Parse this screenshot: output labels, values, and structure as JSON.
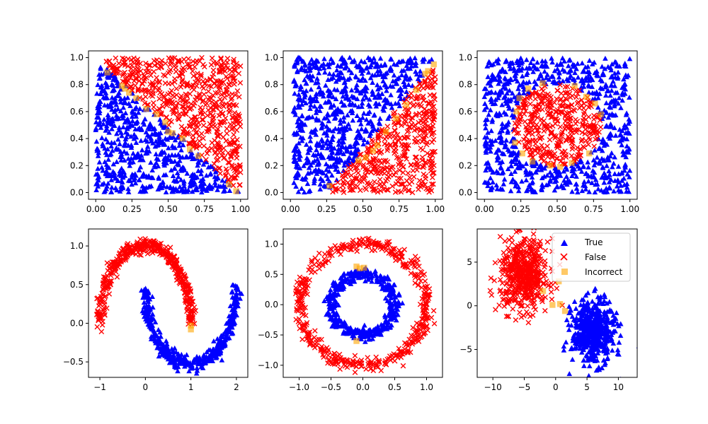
{
  "colors": {
    "true": "#0000ff",
    "false": "#ff0000",
    "incorrect": "#ffa500"
  },
  "legend": {
    "entries": [
      {
        "label": "True",
        "marker": "triangle",
        "color": "#0000ff"
      },
      {
        "label": "False",
        "marker": "x",
        "color": "#ff0000"
      },
      {
        "label": "Incorrect",
        "marker": "square",
        "color": "#ffa500"
      }
    ]
  },
  "chart_data": [
    {
      "type": "scatter",
      "title": "",
      "description": "Uniform points in unit square split by anti-diagonal: True below x+y=1, False above",
      "xlim": [
        -0.05,
        1.05
      ],
      "ylim": [
        -0.05,
        1.05
      ],
      "xticks": [
        0.0,
        0.25,
        0.5,
        0.75,
        1.0
      ],
      "yticks": [
        0.0,
        0.2,
        0.4,
        0.6,
        0.8,
        1.0
      ],
      "xtick_labels": [
        "0.00",
        "0.25",
        "0.50",
        "0.75",
        "1.00"
      ],
      "ytick_labels": [
        "0.0",
        "0.2",
        "0.4",
        "0.6",
        "0.8",
        "1.0"
      ],
      "series": [
        {
          "name": "True",
          "marker": "triangle",
          "rule": "x+y<1",
          "n_points": 600
        },
        {
          "name": "False",
          "marker": "x",
          "rule": "x+y>=1",
          "n_points": 600
        },
        {
          "name": "Incorrect",
          "marker": "square",
          "points": [
            [
              0.08,
              0.89
            ],
            [
              0.18,
              0.79
            ],
            [
              0.2,
              0.77
            ],
            [
              0.23,
              0.74
            ],
            [
              0.28,
              0.7
            ],
            [
              0.35,
              0.62
            ],
            [
              0.42,
              0.58
            ],
            [
              0.48,
              0.52
            ],
            [
              0.5,
              0.45
            ],
            [
              0.53,
              0.44
            ],
            [
              0.6,
              0.4
            ],
            [
              0.65,
              0.32
            ],
            [
              0.71,
              0.27
            ],
            [
              0.92,
              0.06
            ],
            [
              0.97,
              0.01
            ]
          ]
        }
      ]
    },
    {
      "type": "scatter",
      "title": "",
      "description": "Uniform points; True above line y=(x-0.25)*1.27, False below",
      "xlim": [
        -0.05,
        1.05
      ],
      "ylim": [
        -0.05,
        1.05
      ],
      "xticks": [
        0.0,
        0.25,
        0.5,
        0.75,
        1.0
      ],
      "yticks": [
        0.0,
        0.2,
        0.4,
        0.6,
        0.8,
        1.0
      ],
      "xtick_labels": [
        "0.00",
        "0.25",
        "0.50",
        "0.75",
        "1.00"
      ],
      "ytick_labels": [
        "0.0",
        "0.2",
        "0.4",
        "0.6",
        "0.8",
        "1.0"
      ],
      "series": [
        {
          "name": "True",
          "marker": "triangle",
          "rule": "y>(x-0.25)*1.27",
          "n_points": 700
        },
        {
          "name": "False",
          "marker": "x",
          "rule": "y<=(x-0.25)*1.27",
          "n_points": 450
        },
        {
          "name": "Incorrect",
          "marker": "square",
          "points": [
            [
              0.27,
              0.05
            ],
            [
              0.47,
              0.24
            ],
            [
              0.52,
              0.26
            ],
            [
              0.57,
              0.31
            ],
            [
              0.6,
              0.35
            ],
            [
              0.66,
              0.45
            ],
            [
              0.73,
              0.55
            ],
            [
              0.8,
              0.65
            ],
            [
              0.87,
              0.76
            ],
            [
              0.93,
              0.88
            ],
            [
              0.95,
              0.9
            ],
            [
              0.99,
              0.95
            ]
          ]
        }
      ]
    },
    {
      "type": "scatter",
      "title": "",
      "description": "Uniform points; False inside circle centered (0.5,0.5) r=0.3, True outside",
      "xlim": [
        -0.05,
        1.05
      ],
      "ylim": [
        -0.05,
        1.05
      ],
      "xticks": [
        0.0,
        0.25,
        0.5,
        0.75,
        1.0
      ],
      "yticks": [
        0.0,
        0.2,
        0.4,
        0.6,
        0.8,
        1.0
      ],
      "xtick_labels": [
        "0.00",
        "0.25",
        "0.50",
        "0.75",
        "1.00"
      ],
      "ytick_labels": [
        "0.0",
        "0.2",
        "0.4",
        "0.6",
        "0.8",
        "1.0"
      ],
      "series": [
        {
          "name": "True",
          "marker": "triangle",
          "rule": "dist>=0.3",
          "n_points": 750
        },
        {
          "name": "False",
          "marker": "x",
          "rule": "dist<0.3",
          "n_points": 380
        },
        {
          "name": "Incorrect",
          "marker": "square",
          "points": [
            [
              0.22,
              0.6
            ],
            [
              0.24,
              0.7
            ],
            [
              0.3,
              0.77
            ],
            [
              0.4,
              0.81
            ],
            [
              0.62,
              0.79
            ],
            [
              0.7,
              0.71
            ],
            [
              0.76,
              0.66
            ],
            [
              0.8,
              0.58
            ],
            [
              0.21,
              0.37
            ],
            [
              0.26,
              0.29
            ],
            [
              0.33,
              0.23
            ],
            [
              0.45,
              0.2
            ],
            [
              0.52,
              0.19
            ],
            [
              0.6,
              0.22
            ],
            [
              0.72,
              0.29
            ]
          ]
        }
      ]
    },
    {
      "type": "scatter",
      "title": "",
      "description": "Two interleaving moons: False upper arc, True lower arc",
      "xlim": [
        -1.25,
        2.25
      ],
      "ylim": [
        -0.7,
        1.22
      ],
      "xticks": [
        -1,
        0,
        1,
        2
      ],
      "yticks": [
        -0.5,
        0.0,
        0.5,
        1.0
      ],
      "xtick_labels": [
        "−1",
        "0",
        "1",
        "2"
      ],
      "ytick_labels": [
        "−0.5",
        "0.0",
        "0.5",
        "1.0"
      ],
      "series": [
        {
          "name": "False",
          "marker": "x",
          "shape": "upper moon",
          "n_points": 420
        },
        {
          "name": "True",
          "marker": "triangle",
          "shape": "lower moon",
          "n_points": 420
        },
        {
          "name": "Incorrect",
          "marker": "square",
          "points": [
            [
              1.0,
              -0.03
            ],
            [
              1.0,
              -0.08
            ]
          ]
        }
      ]
    },
    {
      "type": "scatter",
      "title": "",
      "description": "Concentric circles: False outer ring r=1, True inner ring r=0.5",
      "xlim": [
        -1.25,
        1.25
      ],
      "ylim": [
        -1.2,
        1.25
      ],
      "xticks": [
        -1.0,
        -0.5,
        0.0,
        0.5,
        1.0
      ],
      "yticks": [
        -1.0,
        -0.5,
        0.0,
        0.5,
        1.0
      ],
      "xtick_labels": [
        "−1.0",
        "−0.5",
        "0.0",
        "0.5",
        "1.0"
      ],
      "ytick_labels": [
        "−1.0",
        "−0.5",
        "0.0",
        "0.5",
        "1.0"
      ],
      "series": [
        {
          "name": "False",
          "marker": "x",
          "shape": "outer ring r=1.0",
          "n_points": 480
        },
        {
          "name": "True",
          "marker": "triangle",
          "shape": "inner ring r=0.5",
          "n_points": 380
        },
        {
          "name": "Incorrect",
          "marker": "square",
          "points": [
            [
              -0.1,
              0.63
            ],
            [
              -0.05,
              0.6
            ],
            [
              0.02,
              0.61
            ],
            [
              -0.1,
              -0.6
            ]
          ]
        }
      ]
    },
    {
      "type": "scatter",
      "title": "",
      "description": "Two Gaussian blobs: False centered (-5,3.5), True centered (6,-3)",
      "xlim": [
        -12.5,
        13.0
      ],
      "ylim": [
        -8.2,
        8.8
      ],
      "xticks": [
        -10,
        -5,
        0,
        5,
        10
      ],
      "yticks": [
        -5,
        0,
        5
      ],
      "xtick_labels": [
        "−10",
        "−5",
        "0",
        "5",
        "10"
      ],
      "ytick_labels": [
        "−5",
        "0",
        "5"
      ],
      "series": [
        {
          "name": "False",
          "marker": "x",
          "center": [
            -5,
            3.5
          ],
          "n_points": 520
        },
        {
          "name": "True",
          "marker": "triangle",
          "center": [
            6,
            -3
          ],
          "n_points": 500
        },
        {
          "name": "Incorrect",
          "marker": "square",
          "points": [
            [
              -2,
              1.7
            ],
            [
              0.5,
              2.8
            ],
            [
              -0.5,
              0.1
            ],
            [
              1.5,
              -0.6
            ],
            [
              0.7,
              0.2
            ]
          ]
        }
      ],
      "legend": true,
      "legend_position": "top-right"
    }
  ]
}
